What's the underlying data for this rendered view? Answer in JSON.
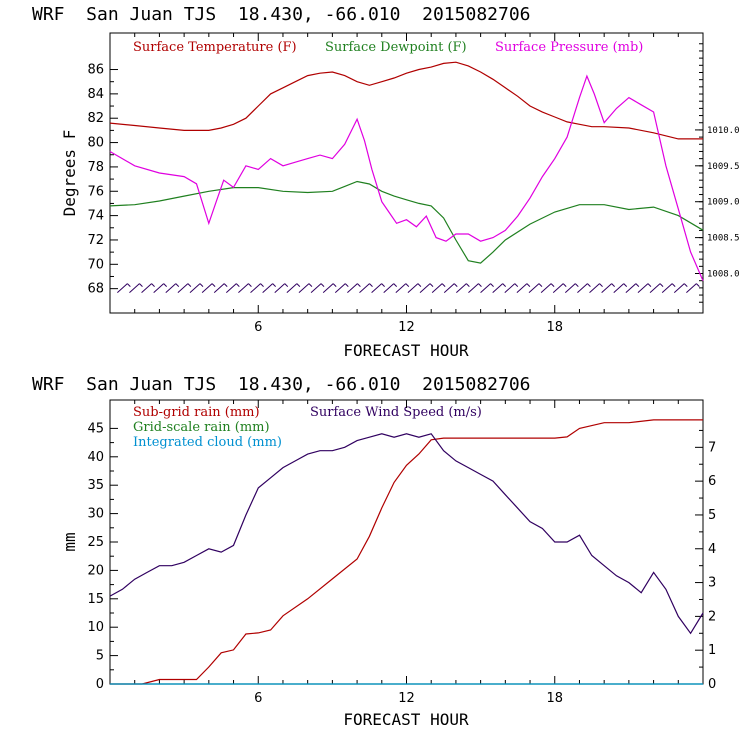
{
  "chart_data": [
    {
      "type": "line",
      "title": "WRF  San Juan TJS  18.430, -66.010  2015082706",
      "xlabel": "FORECAST HOUR",
      "ylabel": "Degrees F",
      "xlim": [
        0,
        24
      ],
      "ylim": [
        66,
        89
      ],
      "x_ticks": [
        6,
        12,
        18
      ],
      "y_ticks": [
        68,
        70,
        72,
        74,
        76,
        78,
        80,
        82,
        84,
        86
      ],
      "y2_ticks": [
        "1008.0",
        "1008.5",
        "1009.0",
        "1009.5",
        "1010.0"
      ],
      "y2lim": [
        1007.45,
        1011.35
      ],
      "grid": false,
      "legend_position": "top",
      "series": [
        {
          "name": "Surface Temperature (F)",
          "color": "#b00000",
          "axis": "left",
          "x": [
            0,
            1,
            2,
            3,
            4,
            4.5,
            5,
            5.5,
            6,
            6.5,
            7,
            7.5,
            8,
            8.5,
            9,
            9.5,
            10,
            10.5,
            11,
            11.5,
            12,
            12.5,
            13,
            13.5,
            14,
            14.5,
            15,
            15.5,
            16,
            16.5,
            17,
            17.5,
            18,
            18.5,
            19,
            19.5,
            20,
            21,
            22,
            23,
            24
          ],
          "values": [
            81.6,
            81.4,
            81.2,
            81.0,
            81.0,
            81.2,
            81.5,
            82.0,
            83.0,
            84.0,
            84.5,
            85.0,
            85.5,
            85.7,
            85.8,
            85.5,
            85.0,
            84.7,
            85.0,
            85.3,
            85.7,
            86.0,
            86.2,
            86.5,
            86.6,
            86.3,
            85.8,
            85.2,
            84.5,
            83.8,
            83.0,
            82.5,
            82.1,
            81.7,
            81.5,
            81.3,
            81.3,
            81.2,
            80.8,
            80.3,
            80.3
          ]
        },
        {
          "name": "Surface Dewpoint (F)",
          "color": "#208020",
          "axis": "left",
          "x": [
            0,
            1,
            2,
            3,
            4,
            5,
            6,
            7,
            8,
            9,
            9.5,
            10,
            10.5,
            11,
            11.5,
            12,
            12.5,
            13,
            13.5,
            14,
            14.5,
            15,
            15.5,
            16,
            17,
            18,
            19,
            20,
            21,
            22,
            23,
            24
          ],
          "values": [
            74.8,
            74.9,
            75.2,
            75.6,
            76.0,
            76.3,
            76.3,
            76.0,
            75.9,
            76.0,
            76.4,
            76.8,
            76.6,
            76.0,
            75.6,
            75.3,
            75.0,
            74.8,
            73.8,
            72.0,
            70.3,
            70.1,
            71.0,
            72.0,
            73.3,
            74.3,
            74.9,
            74.9,
            74.5,
            74.7,
            74.0,
            72.8
          ]
        },
        {
          "name": "Surface Pressure (mb)",
          "color": "#e000e0",
          "axis": "right",
          "x": [
            0,
            1,
            2,
            3,
            3.5,
            4,
            4.3,
            4.6,
            5,
            5.5,
            6,
            6.5,
            7,
            7.5,
            8,
            8.5,
            9,
            9.5,
            10,
            10.3,
            10.6,
            11,
            11.3,
            11.6,
            12,
            12.4,
            12.8,
            13.2,
            13.6,
            14,
            14.5,
            15,
            15.5,
            16,
            16.5,
            17,
            17.5,
            18,
            18.5,
            19,
            19.3,
            19.6,
            20,
            20.5,
            21,
            21.5,
            22,
            22.5,
            23,
            23.5,
            24
          ],
          "values": [
            1009.7,
            1009.5,
            1009.4,
            1009.35,
            1009.25,
            1008.7,
            1009.0,
            1009.3,
            1009.2,
            1009.5,
            1009.45,
            1009.6,
            1009.5,
            1009.55,
            1009.6,
            1009.65,
            1009.6,
            1009.8,
            1010.15,
            1009.85,
            1009.45,
            1009.0,
            1008.85,
            1008.7,
            1008.75,
            1008.65,
            1008.8,
            1008.5,
            1008.45,
            1008.55,
            1008.55,
            1008.45,
            1008.5,
            1008.6,
            1008.8,
            1009.05,
            1009.35,
            1009.6,
            1009.9,
            1010.45,
            1010.75,
            1010.5,
            1010.1,
            1010.3,
            1010.45,
            1010.35,
            1010.25,
            1009.5,
            1008.9,
            1008.3,
            1007.9
          ]
        }
      ],
      "annotations": [
        "wind barbs along 68 F"
      ]
    },
    {
      "type": "line",
      "title": "WRF  San Juan TJS  18.430, -66.010  2015082706",
      "xlabel": "FORECAST HOUR",
      "ylabel": "mm",
      "xlim": [
        0,
        24
      ],
      "ylim": [
        0,
        50
      ],
      "x_ticks": [
        6,
        12,
        18
      ],
      "y_ticks": [
        0,
        5,
        10,
        15,
        20,
        25,
        30,
        35,
        40,
        45
      ],
      "y2lim": [
        0,
        8.4
      ],
      "y2_ticks": [
        0,
        1,
        2,
        3,
        4,
        5,
        6,
        7
      ],
      "grid": false,
      "legend_position": "top-left",
      "series": [
        {
          "name": "Sub-grid rain (mm)",
          "color": "#b00000",
          "axis": "left",
          "x": [
            0,
            1.3,
            2,
            3.5,
            4,
            4.5,
            5,
            5.5,
            6,
            6.5,
            7,
            8,
            9,
            10,
            10.5,
            11,
            11.5,
            12,
            12.5,
            13,
            13.5,
            14,
            15,
            16,
            17,
            18,
            18.5,
            19,
            20,
            21,
            22,
            23,
            24
          ],
          "values": [
            0,
            0,
            0.8,
            0.8,
            3.0,
            5.5,
            6.0,
            8.8,
            9.0,
            9.5,
            12.0,
            15.0,
            18.5,
            22.0,
            26.0,
            31.0,
            35.5,
            38.5,
            40.5,
            43.0,
            43.3,
            43.3,
            43.3,
            43.3,
            43.3,
            43.3,
            43.5,
            45.0,
            46.0,
            46.0,
            46.5,
            46.5,
            46.5
          ]
        },
        {
          "name": "Grid-scale rain (mm)",
          "color": "#208020",
          "axis": "left",
          "x": [
            0,
            24
          ],
          "values": [
            0,
            0
          ]
        },
        {
          "name": "Integrated cloud (mm)",
          "color": "#0090d0",
          "axis": "left",
          "x": [
            0,
            24
          ],
          "values": [
            0,
            0
          ]
        },
        {
          "name": "Surface Wind Speed (m/s)",
          "color": "#300060",
          "axis": "right",
          "x": [
            0,
            0.5,
            1,
            1.5,
            2,
            2.5,
            3,
            3.5,
            4,
            4.5,
            5,
            5.5,
            6,
            6.5,
            7,
            7.5,
            8,
            8.5,
            9,
            9.5,
            10,
            10.5,
            11,
            11.5,
            12,
            12.5,
            13,
            13.5,
            14,
            14.5,
            15,
            15.5,
            16,
            16.5,
            17,
            17.5,
            18,
            18.5,
            19,
            19.5,
            20,
            20.5,
            21,
            21.5,
            22,
            22.5,
            23,
            23.5,
            24
          ],
          "values": [
            2.6,
            2.8,
            3.1,
            3.3,
            3.5,
            3.5,
            3.6,
            3.8,
            4.0,
            3.9,
            4.1,
            5.0,
            5.8,
            6.1,
            6.4,
            6.6,
            6.8,
            6.9,
            6.9,
            7.0,
            7.2,
            7.3,
            7.4,
            7.3,
            7.4,
            7.3,
            7.4,
            6.9,
            6.6,
            6.4,
            6.2,
            6.0,
            5.6,
            5.2,
            4.8,
            4.6,
            4.2,
            4.2,
            4.4,
            3.8,
            3.5,
            3.2,
            3.0,
            2.7,
            3.3,
            2.8,
            2.0,
            1.5,
            2.1
          ]
        }
      ]
    }
  ]
}
